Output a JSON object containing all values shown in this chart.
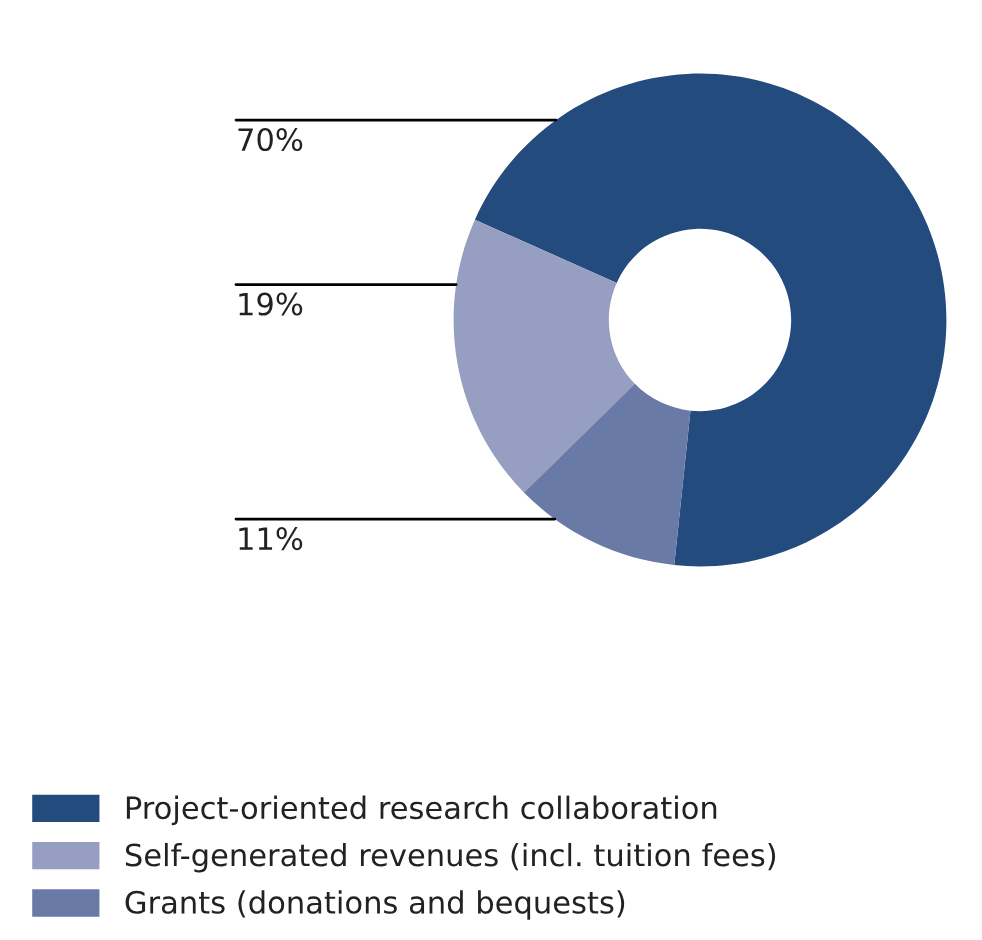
{
  "chart_data": {
    "type": "donut",
    "categories": [
      "Project-oriented research collaboration",
      "Self-generated revenues (incl. tuition fees)",
      "Grants (donations and bequests)"
    ],
    "values": [
      70,
      19,
      11
    ],
    "colors": [
      "#234b7e",
      "#969fc2",
      "#6a7aa7"
    ],
    "value_labels": [
      "70%",
      "19%",
      "11%"
    ],
    "legend": "bottom"
  }
}
